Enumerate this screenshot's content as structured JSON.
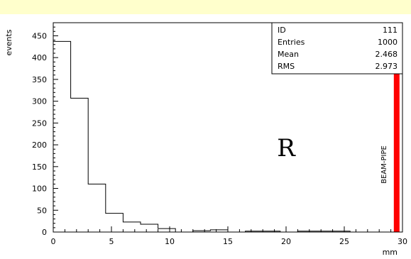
{
  "chart_data": {
    "type": "bar",
    "ylabel": "events",
    "xlabel": "mm",
    "xlim": [
      0,
      30
    ],
    "ylim": [
      0,
      480
    ],
    "x_ticks": [
      0,
      5,
      10,
      15,
      20,
      25,
      30
    ],
    "y_ticks": [
      0,
      50,
      100,
      150,
      200,
      250,
      300,
      350,
      400,
      450
    ],
    "bin_edges": [
      0,
      1.5,
      3,
      4.5,
      6,
      7.5,
      9,
      10.5,
      12,
      13.5,
      15,
      16.5,
      18,
      19.5,
      21,
      22.5,
      24,
      25.5,
      27,
      28.5,
      30
    ],
    "values": [
      437,
      307,
      110,
      43,
      23,
      18,
      8,
      0,
      3,
      5,
      0,
      2,
      2,
      0,
      2,
      2,
      2,
      0,
      0,
      0
    ],
    "grid": false,
    "stats_box": {
      "rows": [
        {
          "label": "ID",
          "value": "111"
        },
        {
          "label": "Entries",
          "value": "1000"
        },
        {
          "label": "Mean",
          "value": "2.468"
        },
        {
          "label": "RMS",
          "value": "2.973"
        }
      ]
    },
    "annotation_r": "R",
    "beam_pipe": {
      "label": "BEAM-PIPE",
      "x_value": 29.5,
      "color": "#ff0000"
    }
  }
}
